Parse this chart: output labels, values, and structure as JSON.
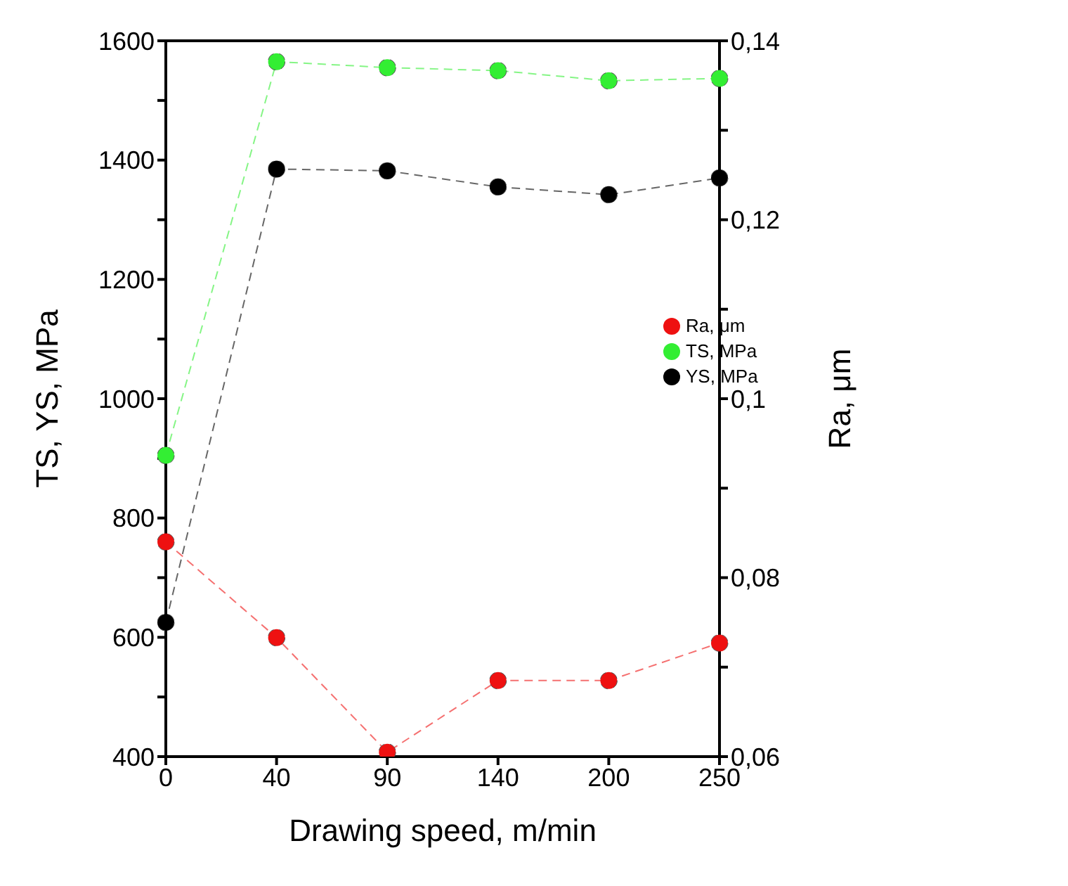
{
  "chart_data": {
    "type": "line",
    "xlabel": "Drawing speed, m/min",
    "ylabel": "TS, YS, MPa",
    "y2label": "Ra, μm",
    "categories": [
      "0",
      "40",
      "90",
      "140",
      "200",
      "250"
    ],
    "series": [
      {
        "name": "YS, MPa",
        "color": "#000000",
        "values": [
          625,
          1385,
          1382,
          1355,
          1342,
          1370
        ]
      },
      {
        "name": "TS, MPa",
        "color": "#33ee33",
        "values": [
          905,
          1565,
          1555,
          1550,
          1533,
          1537
        ]
      },
      {
        "name": "Ra, μm",
        "color": "#ee1111",
        "axis": "y2",
        "values": [
          0.084,
          0.0733,
          0.0605,
          0.0685,
          0.0685,
          0.0727
        ]
      }
    ],
    "ylim": [
      400,
      1600
    ],
    "yticks": [
      400,
      {
        "value": 500,
        "label": null
      },
      600,
      {
        "value": 700,
        "label": null
      },
      800,
      {
        "value": 900,
        "label": null
      },
      1000,
      {
        "value": 1100,
        "label": null
      },
      1200,
      {
        "value": 1300,
        "label": null
      },
      1400,
      {
        "value": 1500,
        "label": null
      },
      1600
    ],
    "y2lim": [
      0.06,
      0.14
    ],
    "y2ticks": [
      {
        "value": 0.06,
        "label": "0,06"
      },
      {
        "value": 0.07,
        "label": null
      },
      {
        "value": 0.08,
        "label": "0,08"
      },
      {
        "value": 0.09,
        "label": null
      },
      {
        "value": 0.1,
        "label": "0,1"
      },
      {
        "value": 0.11,
        "label": null
      },
      {
        "value": 0.12,
        "label": "0,12"
      },
      {
        "value": 0.13,
        "label": null
      },
      {
        "value": 0.14,
        "label": "0,14"
      }
    ],
    "grid": false,
    "legend": "center right",
    "marker": "circle",
    "line_style": "dashed"
  }
}
